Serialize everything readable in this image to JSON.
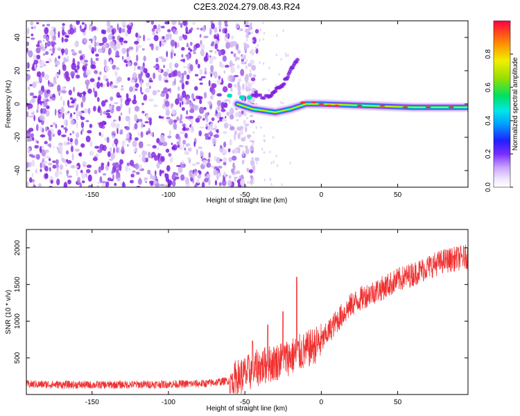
{
  "title": "C2E3.2024.279.08.43.R24",
  "colors": {
    "spec_bg": "#ffffff",
    "noise_dark": "#8a2be2",
    "noise_light": "#d6c2f0",
    "snr_line": "#f03030"
  },
  "chart_data": [
    {
      "type": "heatmap",
      "panel": "top",
      "title": "C2E3.2024.279.08.43.R24",
      "xlabel": "Height of straight line (km)",
      "ylabel": "Frequency (Hz)",
      "xlim": [
        -193,
        96
      ],
      "ylim": [
        -50,
        50
      ],
      "xticks": [
        -150,
        -100,
        -50,
        0,
        50
      ],
      "yticks": [
        -40,
        -20,
        0,
        20,
        40
      ],
      "colorbar": {
        "label": "Normalized spectral amplitude",
        "ticks": [
          "0.0",
          "0.2",
          "0.4",
          "0.6",
          "0.8"
        ],
        "range": [
          0,
          1
        ]
      },
      "features": {
        "broadband_noise_x": [
          -193,
          -50
        ],
        "dispersed_trace": [
          [
            -45,
            5
          ],
          [
            -35,
            4
          ],
          [
            -30,
            8
          ],
          [
            -25,
            12
          ],
          [
            -20,
            20
          ],
          [
            -15,
            28
          ]
        ],
        "main_trace": [
          [
            -55,
            0
          ],
          [
            -45,
            -3
          ],
          [
            -30,
            -5
          ],
          [
            -20,
            -3
          ],
          [
            -10,
            0
          ],
          [
            0,
            0
          ],
          [
            30,
            -1
          ],
          [
            60,
            -2
          ],
          [
            96,
            -2
          ]
        ]
      }
    },
    {
      "type": "line",
      "panel": "bottom",
      "xlabel": "Height of straight line (km)",
      "ylabel": "SNR (10 * v/v)",
      "xlim": [
        -193,
        96
      ],
      "ylim": [
        0,
        2250
      ],
      "xticks": [
        -150,
        -100,
        -50,
        0,
        50
      ],
      "yticks": [
        500,
        1000,
        1500,
        2000
      ],
      "series": [
        {
          "envelope_x": [
            -193,
            -150,
            -100,
            -75,
            -60,
            -50,
            -40,
            -30,
            -20,
            -15,
            -10,
            0,
            10,
            20,
            30,
            40,
            50,
            60,
            70,
            80,
            96
          ],
          "envelope_y": [
            140,
            130,
            140,
            150,
            190,
            270,
            380,
            440,
            520,
            560,
            600,
            720,
            1000,
            1230,
            1360,
            1450,
            1560,
            1640,
            1740,
            1820,
            1880
          ],
          "spikes": [
            [
              -16,
              1600
            ],
            [
              -25,
              1130
            ],
            [
              -35,
              950
            ],
            [
              -45,
              730
            ]
          ]
        }
      ]
    }
  ]
}
